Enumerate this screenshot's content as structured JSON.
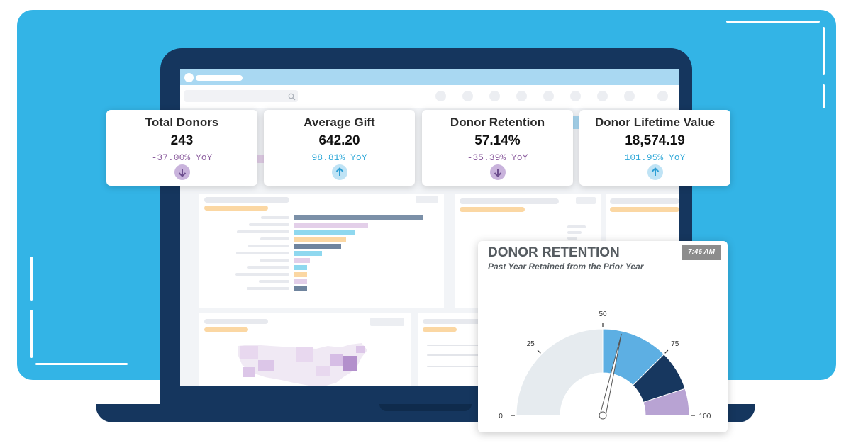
{
  "kpis": [
    {
      "title": "Total Donors",
      "value": "243",
      "yoy": "-37.00% YoY",
      "direction": "down",
      "yoy_color": "#8b5c9e",
      "arrow_bg": "#c9b3dc",
      "arrow_color": "#6e4f8f"
    },
    {
      "title": "Average Gift",
      "value": "642.20",
      "yoy": "98.81% YoY",
      "direction": "up",
      "yoy_color": "#2fa8d8",
      "arrow_bg": "#bfe3f5",
      "arrow_color": "#2d9fd5"
    },
    {
      "title": "Donor Retention",
      "value": "57.14%",
      "yoy": "-35.39% YoY",
      "direction": "down",
      "yoy_color": "#8b5c9e",
      "arrow_bg": "#c9b3dc",
      "arrow_color": "#6e4f8f"
    },
    {
      "title": "Donor Lifetime Value",
      "value": "18,574.19",
      "yoy": "101.95% YoY",
      "direction": "up",
      "yoy_color": "#2fa8d8",
      "arrow_bg": "#bfe3f5",
      "arrow_color": "#2d9fd5"
    }
  ],
  "gauge": {
    "title": "DONOR RETENTION",
    "subtitle": "Past Year Retained from the Prior Year",
    "time": "7:46 AM",
    "value": 57.14,
    "min": 0,
    "max": 100,
    "tick_labels": [
      "0",
      "25",
      "50",
      "75",
      "100"
    ],
    "bands": [
      {
        "from": 0,
        "to": 50,
        "color": "#e6ebef"
      },
      {
        "from": 50,
        "to": 75,
        "color": "#5dafe3"
      },
      {
        "from": 75,
        "to": 90,
        "color": "#17375f"
      },
      {
        "from": 90,
        "to": 100,
        "color": "#b8a3d3"
      }
    ]
  },
  "colors": {
    "background": "#33b4e6",
    "laptop": "#15365e",
    "screen_bar_colors": [
      "#7b90a8",
      "#e3cfe9",
      "#8fd8ef",
      "#fbd7a3",
      "#6f849e",
      "#8fd8ef",
      "#e3cfe9",
      "#8fd8ef",
      "#fbd7a3",
      "#e3cfe9",
      "#6f849e"
    ],
    "screen_bar_lengths": [
      0.96,
      0.55,
      0.46,
      0.39,
      0.35,
      0.21,
      0.12,
      0.1,
      0.1,
      0.1,
      0.1
    ]
  },
  "icons": {
    "search": "search-icon",
    "arrow_up": "arrow-up-icon",
    "arrow_down": "arrow-down-icon"
  }
}
